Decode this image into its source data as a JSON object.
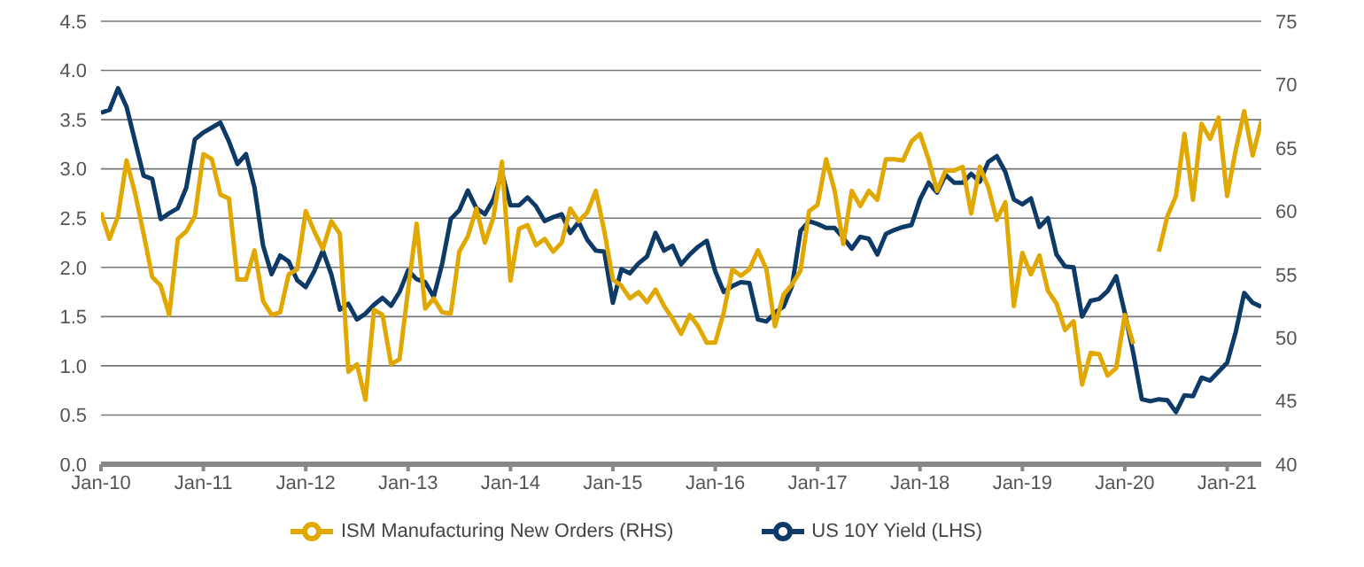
{
  "chart_data": {
    "type": "line",
    "legend": "bottom",
    "grid": "y",
    "x": [
      "2010-01",
      "2010-02",
      "2010-03",
      "2010-04",
      "2010-05",
      "2010-06",
      "2010-07",
      "2010-08",
      "2010-09",
      "2010-10",
      "2010-11",
      "2010-12",
      "2011-01",
      "2011-02",
      "2011-03",
      "2011-04",
      "2011-05",
      "2011-06",
      "2011-07",
      "2011-08",
      "2011-09",
      "2011-10",
      "2011-11",
      "2011-12",
      "2012-01",
      "2012-02",
      "2012-03",
      "2012-04",
      "2012-05",
      "2012-06",
      "2012-07",
      "2012-08",
      "2012-09",
      "2012-10",
      "2012-11",
      "2012-12",
      "2013-01",
      "2013-02",
      "2013-03",
      "2013-04",
      "2013-05",
      "2013-06",
      "2013-07",
      "2013-08",
      "2013-09",
      "2013-10",
      "2013-11",
      "2013-12",
      "2014-01",
      "2014-02",
      "2014-03",
      "2014-04",
      "2014-05",
      "2014-06",
      "2014-07",
      "2014-08",
      "2014-09",
      "2014-10",
      "2014-11",
      "2014-12",
      "2015-01",
      "2015-02",
      "2015-03",
      "2015-04",
      "2015-05",
      "2015-06",
      "2015-07",
      "2015-08",
      "2015-09",
      "2015-10",
      "2015-11",
      "2015-12",
      "2016-01",
      "2016-02",
      "2016-03",
      "2016-04",
      "2016-05",
      "2016-06",
      "2016-07",
      "2016-08",
      "2016-09",
      "2016-10",
      "2016-11",
      "2016-12",
      "2017-01",
      "2017-02",
      "2017-03",
      "2017-04",
      "2017-05",
      "2017-06",
      "2017-07",
      "2017-08",
      "2017-09",
      "2017-10",
      "2017-11",
      "2017-12",
      "2018-01",
      "2018-02",
      "2018-03",
      "2018-04",
      "2018-05",
      "2018-06",
      "2018-07",
      "2018-08",
      "2018-09",
      "2018-10",
      "2018-11",
      "2018-12",
      "2019-01",
      "2019-02",
      "2019-03",
      "2019-04",
      "2019-05",
      "2019-06",
      "2019-07",
      "2019-08",
      "2019-09",
      "2019-10",
      "2019-11",
      "2019-12",
      "2020-01",
      "2020-02",
      "2020-03",
      "2020-04",
      "2020-05",
      "2020-06",
      "2020-07",
      "2020-08",
      "2020-09",
      "2020-10",
      "2020-11",
      "2020-12",
      "2021-01",
      "2021-02",
      "2021-03",
      "2021-04",
      "2021-05"
    ],
    "xlim": [
      "2010-01",
      "2021-05"
    ],
    "xticks": [
      {
        "value": "2010-01",
        "label": "Jan-10"
      },
      {
        "value": "2011-01",
        "label": "Jan-11"
      },
      {
        "value": "2012-01",
        "label": "Jan-12"
      },
      {
        "value": "2013-01",
        "label": "Jan-13"
      },
      {
        "value": "2014-01",
        "label": "Jan-14"
      },
      {
        "value": "2015-01",
        "label": "Jan-15"
      },
      {
        "value": "2016-01",
        "label": "Jan-16"
      },
      {
        "value": "2017-01",
        "label": "Jan-17"
      },
      {
        "value": "2018-01",
        "label": "Jan-18"
      },
      {
        "value": "2019-01",
        "label": "Jan-19"
      },
      {
        "value": "2020-01",
        "label": "Jan-20"
      },
      {
        "value": "2021-01",
        "label": "Jan-21"
      }
    ],
    "ylim": [
      0,
      4.5
    ],
    "yticks": [
      {
        "value": 0,
        "label": "0.0"
      },
      {
        "value": 0.5,
        "label": "0.5"
      },
      {
        "value": 1,
        "label": "1.0"
      },
      {
        "value": 1.5,
        "label": "1.5"
      },
      {
        "value": 2,
        "label": "2.0"
      },
      {
        "value": 2.5,
        "label": "2.5"
      },
      {
        "value": 3,
        "label": "3.0"
      },
      {
        "value": 3.5,
        "label": "3.5"
      },
      {
        "value": 4,
        "label": "4.0"
      },
      {
        "value": 4.5,
        "label": "4.5"
      }
    ],
    "y2lim": [
      40,
      75
    ],
    "y2ticks": [
      40,
      45,
      50,
      55,
      60,
      65,
      70,
      75
    ],
    "series": [
      {
        "name": "US 10Y Yield (LHS)",
        "color": "#0d3a66",
        "values": [
          3.57,
          3.6,
          3.82,
          3.63,
          3.28,
          2.93,
          2.9,
          2.49,
          2.55,
          2.6,
          2.81,
          3.3,
          3.37,
          3.42,
          3.47,
          3.28,
          3.05,
          3.15,
          2.81,
          2.22,
          1.93,
          2.12,
          2.06,
          1.87,
          1.8,
          1.96,
          2.17,
          1.93,
          1.57,
          1.63,
          1.47,
          1.53,
          1.62,
          1.69,
          1.61,
          1.75,
          1.97,
          1.88,
          1.85,
          1.7,
          2.04,
          2.49,
          2.58,
          2.78,
          2.6,
          2.54,
          2.69,
          2.96,
          2.63,
          2.63,
          2.71,
          2.62,
          2.47,
          2.51,
          2.54,
          2.35,
          2.46,
          2.28,
          2.17,
          2.16,
          1.64,
          1.98,
          1.94,
          2.04,
          2.11,
          2.35,
          2.17,
          2.22,
          2.03,
          2.13,
          2.21,
          2.27,
          1.96,
          1.75,
          1.81,
          1.85,
          1.84,
          1.47,
          1.45,
          1.54,
          1.6,
          1.81,
          2.37,
          2.47,
          2.44,
          2.4,
          2.4,
          2.3,
          2.19,
          2.31,
          2.29,
          2.13,
          2.34,
          2.38,
          2.41,
          2.43,
          2.69,
          2.86,
          2.76,
          2.94,
          2.86,
          2.86,
          2.95,
          2.87,
          3.07,
          3.13,
          2.97,
          2.69,
          2.64,
          2.7,
          2.41,
          2.5,
          2.13,
          2.01,
          2.0,
          1.5,
          1.66,
          1.68,
          1.76,
          1.91,
          1.54,
          1.13,
          0.66,
          0.64,
          0.66,
          0.65,
          0.53,
          0.7,
          0.69,
          0.88,
          0.85,
          0.94,
          1.03,
          1.34,
          1.74,
          1.64,
          1.6
        ]
      },
      {
        "name": "ISM Manufacturing New Orders (RHS)",
        "color": "#e0a800",
        "axis": "y2",
        "values": [
          59.9,
          57.8,
          59.6,
          64.0,
          61.4,
          58.2,
          54.8,
          54.1,
          51.8,
          57.8,
          58.4,
          59.6,
          64.5,
          64.1,
          61.3,
          61.0,
          54.6,
          54.6,
          56.9,
          52.9,
          51.8,
          52.0,
          55.0,
          55.4,
          60.0,
          58.4,
          57.0,
          59.2,
          58.2,
          47.3,
          47.9,
          45.1,
          52.2,
          51.8,
          47.9,
          48.3,
          53.8,
          59.0,
          52.3,
          53.1,
          52.0,
          51.9,
          56.8,
          58.0,
          60.2,
          57.5,
          59.5,
          63.9,
          54.5,
          58.6,
          58.9,
          57.3,
          57.8,
          56.8,
          57.5,
          60.2,
          59.2,
          59.9,
          61.6,
          58.4,
          54.6,
          54.1,
          53.1,
          53.6,
          52.8,
          53.8,
          52.5,
          51.5,
          50.3,
          51.8,
          50.9,
          49.6,
          49.6,
          52.0,
          55.4,
          54.9,
          55.4,
          56.9,
          55.4,
          50.9,
          53.4,
          54.2,
          55.3,
          60.0,
          60.5,
          64.1,
          61.6,
          57.4,
          61.6,
          60.4,
          61.6,
          60.9,
          64.1,
          64.1,
          64.0,
          65.5,
          66.1,
          64.1,
          61.6,
          63.2,
          63.2,
          63.5,
          59.8,
          63.5,
          61.9,
          59.3,
          60.7,
          52.5,
          56.7,
          55.0,
          56.5,
          53.7,
          52.7,
          50.6,
          51.3,
          46.3,
          48.8,
          48.7,
          47.0,
          47.6,
          51.8,
          49.5,
          null,
          null,
          56.8,
          59.6,
          61.2,
          66.1,
          60.9,
          66.9,
          65.7,
          67.4,
          61.2,
          64.8,
          67.9,
          64.4,
          67.1
        ]
      }
    ]
  }
}
